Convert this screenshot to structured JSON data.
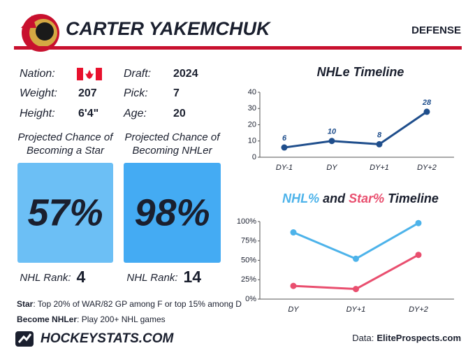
{
  "header": {
    "name": "CARTER YAKEMCHUK",
    "position": "DEFENSE"
  },
  "bio": [
    {
      "label": "Nation:",
      "value": ""
    },
    {
      "label": "Draft:",
      "value": "2024"
    },
    {
      "label": "Weight:",
      "value": "207"
    },
    {
      "label": "Pick:",
      "value": "7"
    },
    {
      "label": "Height:",
      "value": "6'4\""
    },
    {
      "label": "Age:",
      "value": "20"
    }
  ],
  "projections": [
    {
      "title": "Projected Chance of Becoming a Star",
      "value": "57%",
      "rank_label": "NHL Rank:",
      "rank": "4",
      "color": "#6cbff5"
    },
    {
      "title": "Projected Chance of Becoming NHLer",
      "value": "98%",
      "rank_label": "NHL Rank:",
      "rank": "14",
      "color": "#44abf3"
    }
  ],
  "notes": [
    {
      "term": "Star",
      "text": ": Top 20% of WAR/82 GP among F or top 15% among D"
    },
    {
      "term": "Become NHLer",
      "text": ": Play 200+ NHL games"
    }
  ],
  "footer": {
    "brand": "HOCKEYSTATS.COM",
    "source_label": "Data:",
    "source": "EliteProspects.com"
  },
  "chart_data": [
    {
      "type": "line",
      "title": "NHLe Timeline",
      "categories": [
        "DY-1",
        "DY",
        "DY+1",
        "DY+2"
      ],
      "series": [
        {
          "name": "NHLe",
          "color": "#1f4e8c",
          "values": [
            6,
            10,
            8,
            28
          ]
        }
      ],
      "data_labels": true,
      "ylim": [
        0,
        40
      ],
      "yticks": [
        0,
        10,
        20,
        30,
        40
      ]
    },
    {
      "type": "line",
      "title_connector": "and",
      "title_suffix": "Timeline",
      "categories": [
        "DY",
        "DY+1",
        "DY+2"
      ],
      "series": [
        {
          "name": "NHL%",
          "color": "#4db3ea",
          "values": [
            86,
            52,
            98
          ]
        },
        {
          "name": "Star%",
          "color": "#e94f6f",
          "values": [
            17,
            13,
            57
          ]
        }
      ],
      "data_labels": false,
      "ylim": [
        0,
        100
      ],
      "yticks": [
        {
          "value": 0,
          "label": "0%"
        },
        {
          "value": 25,
          "label": "25%"
        },
        {
          "value": 50,
          "label": "50%"
        },
        {
          "value": 75,
          "label": "75%"
        },
        {
          "value": 100,
          "label": "100%"
        }
      ]
    }
  ]
}
